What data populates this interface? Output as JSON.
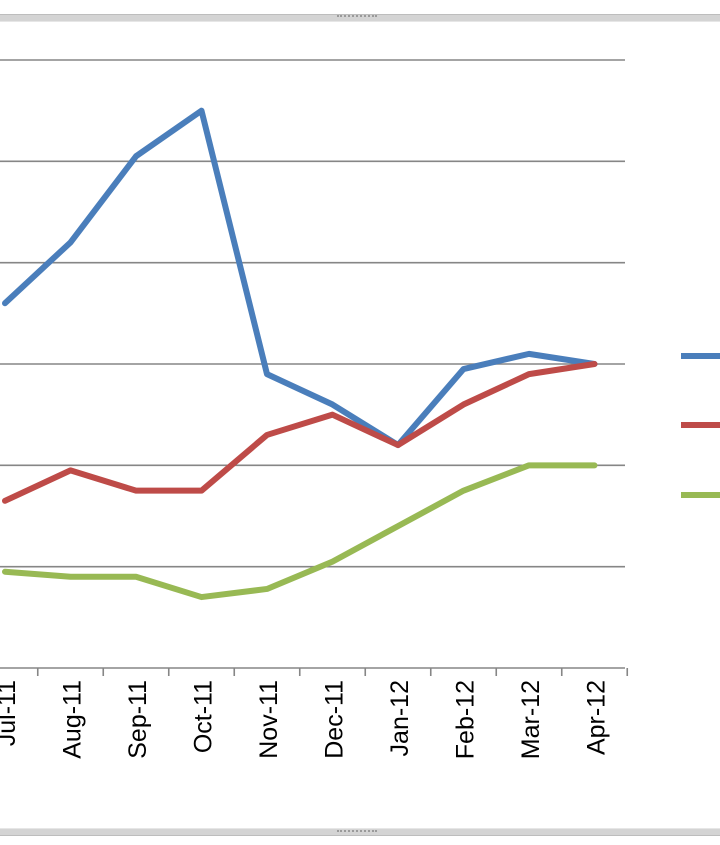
{
  "chart_data": {
    "type": "line",
    "title": "",
    "xlabel": "",
    "ylabel": "",
    "categories": [
      "Jul-11",
      "Aug-11",
      "Sep-11",
      "Oct-11",
      "Nov-11",
      "Dec-11",
      "Jan-12",
      "Feb-12",
      "Mar-12",
      "Apr-12"
    ],
    "ylim": [
      0,
      6
    ],
    "grid": true,
    "legend_position": "right",
    "series": [
      {
        "color": "#4a7ebb",
        "values": [
          3.6,
          4.2,
          5.05,
          5.5,
          2.9,
          2.6,
          2.2,
          2.95,
          3.1,
          3.0
        ]
      },
      {
        "color": "#be4b48",
        "values": [
          1.65,
          1.95,
          1.75,
          1.75,
          2.3,
          2.5,
          2.2,
          2.6,
          2.9,
          3.0
        ]
      },
      {
        "color": "#98b954",
        "values": [
          0.95,
          0.9,
          0.9,
          0.7,
          0.78,
          1.05,
          1.4,
          1.75,
          2.0,
          2.0
        ]
      }
    ]
  }
}
